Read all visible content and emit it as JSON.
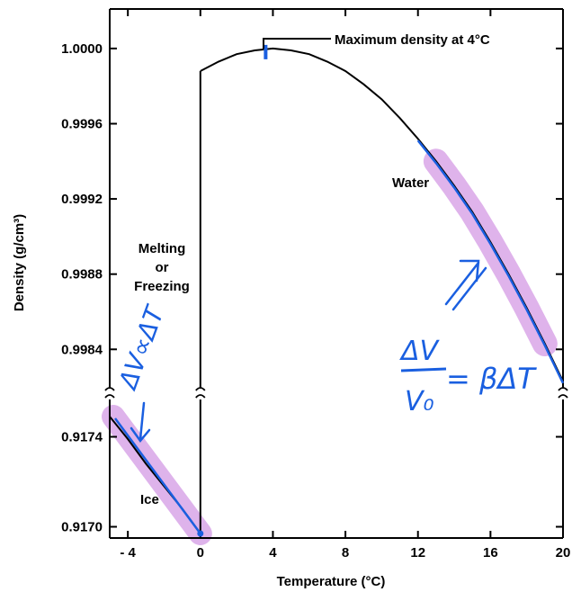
{
  "chart_data": {
    "type": "line",
    "xlabel": "Temperature (°C)",
    "ylabel": "Density (g/cm³)",
    "xlim": [
      -5,
      20
    ],
    "x_ticks": [
      -4,
      0,
      4,
      8,
      12,
      16,
      20
    ],
    "x_tick_labels": [
      "- 4",
      "0",
      "4",
      "8",
      "12",
      "16",
      "20"
    ],
    "upper_ylim": [
      0.99821,
      1.00021
    ],
    "upper_y_ticks": [
      1.0,
      0.9996,
      0.9992,
      0.9988,
      0.9984
    ],
    "upper_y_tick_labels": [
      "1.0000",
      "0.9996",
      "0.9992",
      "0.9988",
      "0.9984"
    ],
    "lower_ylim": [
      0.91695,
      0.91755
    ],
    "lower_y_ticks": [
      0.9174,
      0.917
    ],
    "lower_y_tick_labels": [
      "0.9174",
      "0.9170"
    ],
    "axis_break": "between 0.9984 and 0.9174 on the y-axis",
    "grid": false,
    "series": [
      {
        "name": "Ice",
        "x": [
          -5,
          -4,
          -3,
          -2,
          -1,
          0
        ],
        "y": [
          0.91749,
          0.91739,
          0.91728,
          0.91718,
          0.91708,
          0.91697
        ]
      },
      {
        "name": "Water",
        "x": [
          0,
          1,
          2,
          3,
          4,
          5,
          6,
          7,
          8,
          9,
          10,
          11,
          12,
          13,
          14,
          15,
          16,
          17,
          18,
          19,
          20
        ],
        "y": [
          0.99988,
          0.99993,
          0.99997,
          0.99999,
          1.0,
          0.99999,
          0.99997,
          0.99993,
          0.99988,
          0.99981,
          0.99973,
          0.99963,
          0.99952,
          0.9994,
          0.99927,
          0.99913,
          0.99897,
          0.9988,
          0.99862,
          0.99843,
          0.99823
        ]
      }
    ],
    "annotations": {
      "max_density": "Maximum density at 4°C",
      "water": "Water",
      "ice": "Ice",
      "melting": [
        "Melting",
        "or",
        "Freezing"
      ]
    }
  },
  "handwritten": {
    "left_formula": "ΔV∝ΔT",
    "right_numerator": "ΔV",
    "right_denominator": "V₀",
    "right_rhs": "= βΔT",
    "ink_color": "#1a5fe0",
    "highlight_color": "#d9a6e8"
  }
}
